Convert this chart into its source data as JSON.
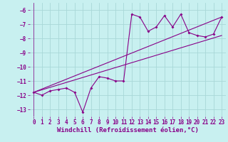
{
  "title": "",
  "xlabel": "Windchill (Refroidissement éolien,°C)",
  "background_color": "#c8f0f0",
  "grid_color": "#a8d8d8",
  "line_color": "#880088",
  "xlim": [
    -0.5,
    23.5
  ],
  "ylim": [
    -13.5,
    -5.5
  ],
  "yticks": [
    -6,
    -7,
    -8,
    -9,
    -10,
    -11,
    -12,
    -13
  ],
  "xticks": [
    0,
    1,
    2,
    3,
    4,
    5,
    6,
    7,
    8,
    9,
    10,
    11,
    12,
    13,
    14,
    15,
    16,
    17,
    18,
    19,
    20,
    21,
    22,
    23
  ],
  "line1_x": [
    0,
    1,
    2,
    3,
    4,
    5,
    6,
    7,
    8,
    9,
    10,
    11,
    12,
    13,
    14,
    15,
    16,
    17,
    18,
    19,
    20,
    21,
    22,
    23
  ],
  "line1_y": [
    -11.8,
    -12.0,
    -11.7,
    -11.6,
    -11.5,
    -11.8,
    -13.2,
    -11.5,
    -10.7,
    -10.8,
    -11.0,
    -11.0,
    -6.3,
    -6.5,
    -7.5,
    -7.2,
    -6.4,
    -7.2,
    -6.3,
    -7.6,
    -7.8,
    -7.9,
    -7.7,
    -6.5
  ],
  "line2_x": [
    0,
    23
  ],
  "line2_y": [
    -11.8,
    -6.5
  ],
  "line3_x": [
    0,
    23
  ],
  "line3_y": [
    -11.8,
    -7.8
  ],
  "tick_fontsize": 5.5,
  "xlabel_fontsize": 6.5,
  "linewidth": 0.8,
  "markersize": 2.0
}
